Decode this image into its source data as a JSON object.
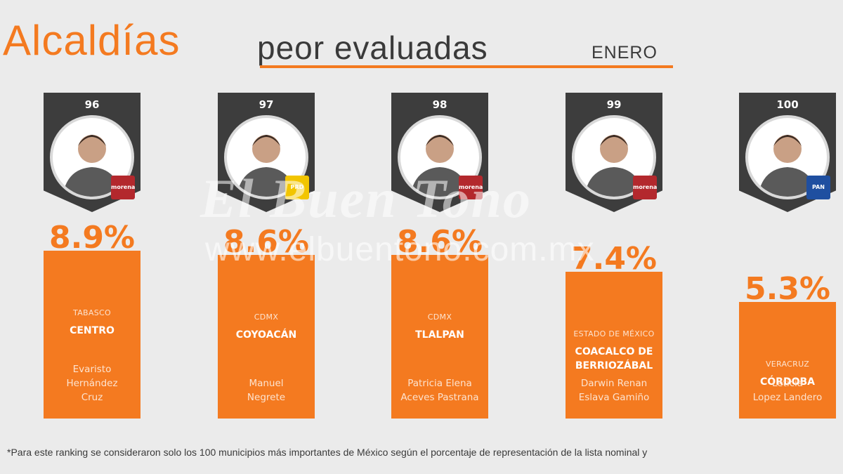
{
  "title": {
    "main": "Alcaldías",
    "sub": "peor evaluadas",
    "month": "ENERO"
  },
  "colors": {
    "accent": "#f47a20",
    "dark": "#3d3d3d",
    "background": "#ebebeb"
  },
  "chart_data": {
    "type": "bar",
    "categories": [
      "CENTRO",
      "COYOACÁN",
      "TLALPAN",
      "COACALCO DE BERRIOZÁBAL",
      "CÓRDOBA"
    ],
    "values": [
      8.9,
      8.6,
      8.6,
      7.4,
      5.3
    ],
    "value_labels": [
      "8.9%",
      "8.6%",
      "8.6%",
      "7.4%",
      "5.3%"
    ],
    "ranks": [
      "96",
      "97",
      "98",
      "99",
      "100"
    ],
    "states": [
      "TABASCO",
      "CDMX",
      "CDMX",
      "ESTADO DE MÉXICO",
      "VERACRUZ"
    ],
    "mayors": [
      [
        "Evaristo",
        "Hernández",
        "Cruz"
      ],
      [
        "Manuel",
        "Negrete"
      ],
      [
        "Patricia Elena",
        "Aceves Pastrana"
      ],
      [
        "Darwin Renan",
        "Eslava Gamiño"
      ],
      [
        "Leticia",
        "Lopez Landero"
      ]
    ],
    "parties": [
      "morena-icon",
      "prd-icon",
      "morena-icon",
      "morena-icon",
      "pan-icon"
    ],
    "party_labels": [
      "morena",
      "PRD",
      "morena",
      "morena",
      "PAN"
    ],
    "party_colors": [
      "#b3282d",
      "#f2c500",
      "#b3282d",
      "#b3282d",
      "#1f4fa0"
    ],
    "ylim": [
      0,
      10
    ]
  },
  "watermark": {
    "line1": "El Buen Tono",
    "line2": "www.elbuentono.com.mx"
  },
  "footnote": "*Para este ranking se consideraron solo los 100 municipios más importantes de México según el porcentaje de representación de la lista nominal y"
}
